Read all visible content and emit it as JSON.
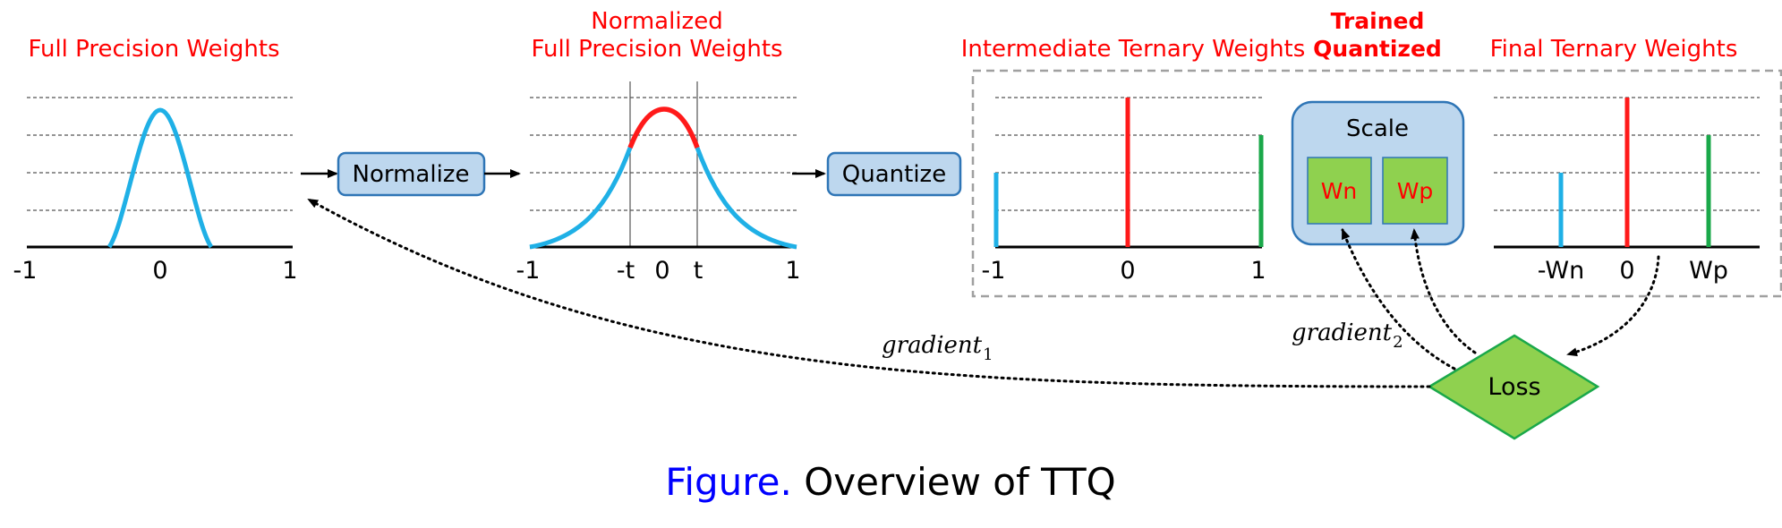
{
  "panel1": {
    "title": "Full Precision Weights",
    "ticks": [
      "-1",
      "0",
      "1"
    ]
  },
  "normalize_box": {
    "label": "Normalize"
  },
  "panel2": {
    "title_line1": "Normalized",
    "title_line2": "Full Precision Weights",
    "ticks": [
      "-1",
      "-t",
      "0",
      "t",
      "1"
    ]
  },
  "quantize_box": {
    "label": "Quantize"
  },
  "panel3": {
    "title": "Intermediate Ternary Weights",
    "ticks": [
      "-1",
      "0",
      "1"
    ]
  },
  "trained": {
    "title_line1": "Trained",
    "title_line2": "Quantized",
    "scale_label": "Scale",
    "wn_label": "Wn",
    "wp_label": "Wp"
  },
  "panel4": {
    "title": "Final Ternary Weights",
    "ticks": [
      "-Wn",
      "0",
      "Wp"
    ]
  },
  "loss": {
    "label": "Loss"
  },
  "gradients": {
    "g1_base": "gradient",
    "g1_sub": "1",
    "g2_base": "gradient",
    "g2_sub": "2"
  },
  "caption": {
    "prefix": "Figure.",
    "text": " Overview of TTQ"
  },
  "colors": {
    "title_red": "#ff0000",
    "curve_blue": "#1fb0e6",
    "bar_red": "#ff1a1a",
    "bar_green": "#1aa84a",
    "box_fill": "#bdd7ee",
    "box_stroke": "#2e75b6",
    "green_fill": "#8fd14f",
    "caption_blue": "#0000ff"
  }
}
